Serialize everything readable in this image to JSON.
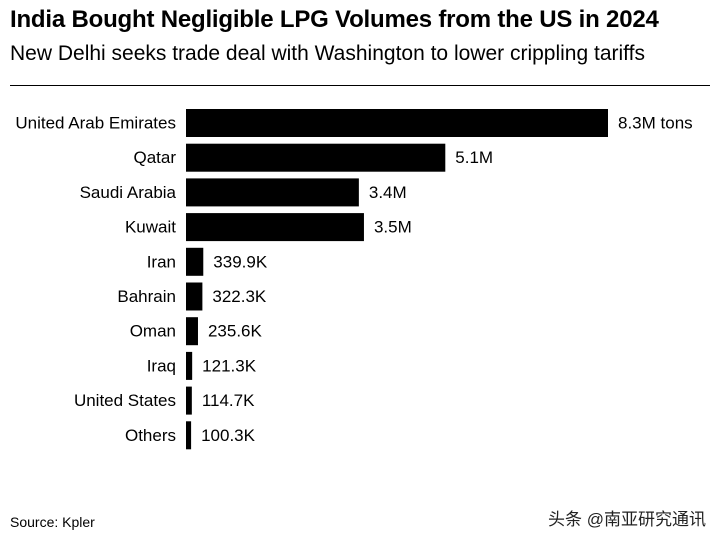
{
  "title": "India Bought Negligible LPG Volumes from the US in 2024",
  "subtitle": "New Delhi seeks trade deal with Washington to lower crippling tariffs",
  "source": "Source: Kpler",
  "watermark": "头条 @南亚研究通讯",
  "chart_data": {
    "type": "bar",
    "orientation": "horizontal",
    "title": "India Bought Negligible LPG Volumes from the US in 2024",
    "subtitle": "New Delhi seeks trade deal with Washington to lower crippling tariffs",
    "unit": "tons",
    "categories": [
      "United Arab Emirates",
      "Qatar",
      "Saudi Arabia",
      "Kuwait",
      "Iran",
      "Bahrain",
      "Oman",
      "Iraq",
      "United States",
      "Others"
    ],
    "values": [
      8300000,
      5100000,
      3400000,
      3500000,
      339900,
      322300,
      235600,
      121300,
      114700,
      100300
    ],
    "data_labels": [
      "8.3M tons",
      "5.1M",
      "3.4M",
      "3.5M",
      "339.9K",
      "322.3K",
      "235.6K",
      "121.3K",
      "114.7K",
      "100.3K"
    ],
    "xlim": [
      0,
      8300000
    ],
    "bar_color": "#000000",
    "grid": false,
    "legend": "none"
  }
}
